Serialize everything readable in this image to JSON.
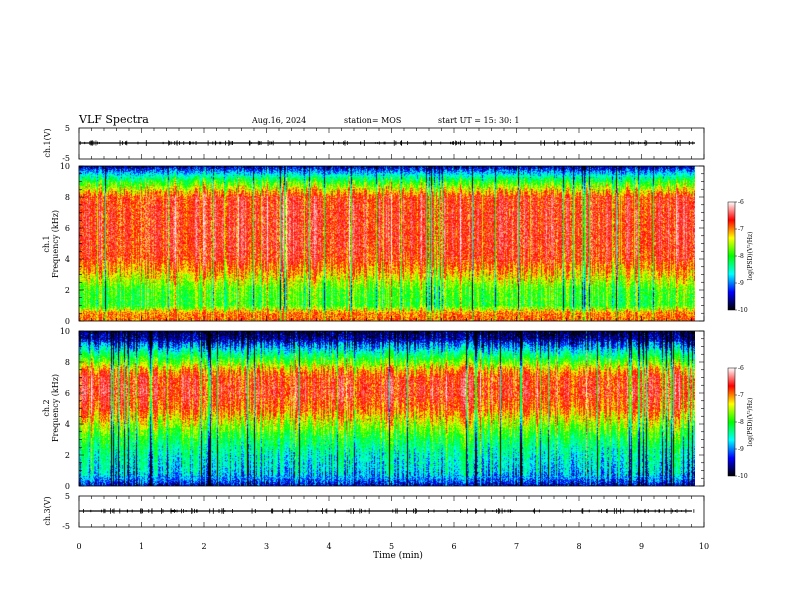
{
  "header": {
    "title": "VLF Spectra",
    "date": "Aug.16, 2024",
    "station": "station= MOS",
    "start": "start  UT  =   15: 30: 1"
  },
  "colorbar": {
    "label": "log(PSD)(V²/Hz)",
    "ticks": [
      "-6",
      "-7",
      "-8",
      "-9",
      "-10"
    ],
    "colors": [
      "#ffffff",
      "#ff0000",
      "#ffff00",
      "#00ff00",
      "#00ffff",
      "#0000ff",
      "#000000"
    ]
  },
  "xaxis": {
    "label": "Time  (min)",
    "ticks": [
      "0",
      "1",
      "2",
      "3",
      "4",
      "5",
      "6",
      "7",
      "8",
      "9",
      "10"
    ]
  },
  "chart_data": [
    {
      "type": "line",
      "panel": "ch.1 waveform",
      "ylabel": "ch.1(V)",
      "yticks": [
        "5",
        "-5"
      ],
      "ylim": [
        -5,
        5
      ],
      "xlim": [
        0,
        10
      ],
      "series": [
        {
          "x": [
            0,
            9.85
          ],
          "values": [
            0,
            0
          ]
        }
      ]
    },
    {
      "type": "heatmap",
      "panel": "ch.1 spectrogram",
      "ylabel": "ch.1\nFrequency (kHz)",
      "yticks": [
        "0",
        "2",
        "4",
        "6",
        "8",
        "10"
      ],
      "ylim": [
        0,
        10
      ],
      "xlim": [
        0,
        10
      ],
      "data_end_min": 9.85,
      "clim": [
        -10,
        -6
      ],
      "profile_khz": [
        0,
        0.5,
        1,
        2,
        3,
        4,
        5,
        6,
        7,
        8,
        8.5,
        9,
        9.5,
        10
      ],
      "profile_logpsd": [
        -7.2,
        -7.3,
        -8.2,
        -8.1,
        -7.5,
        -7.0,
        -6.9,
        -6.9,
        -6.9,
        -7.0,
        -7.6,
        -8.2,
        -9.0,
        -9.7
      ]
    },
    {
      "type": "heatmap",
      "panel": "ch.2 spectrogram",
      "ylabel": "ch.2\nFrequency (kHz)",
      "yticks": [
        "0",
        "2",
        "4",
        "6",
        "8",
        "10"
      ],
      "ylim": [
        0,
        10
      ],
      "xlim": [
        0,
        10
      ],
      "data_end_min": 9.85,
      "clim": [
        -10,
        -6
      ],
      "profile_khz": [
        0,
        0.5,
        1,
        2,
        3,
        4,
        5,
        6,
        7,
        7.5,
        8,
        8.5,
        9,
        9.5,
        10
      ],
      "profile_logpsd": [
        -9.6,
        -9.2,
        -9.0,
        -8.8,
        -8.4,
        -7.8,
        -7.2,
        -6.9,
        -7.0,
        -7.4,
        -8.0,
        -8.6,
        -9.2,
        -9.7,
        -9.9
      ]
    },
    {
      "type": "line",
      "panel": "ch.3 waveform",
      "ylabel": "ch.3(V)",
      "yticks": [
        "5",
        "-5"
      ],
      "ylim": [
        -5,
        5
      ],
      "xlim": [
        0,
        10
      ],
      "series": [
        {
          "x": [
            0,
            9.85
          ],
          "values": [
            0,
            0
          ]
        }
      ]
    }
  ]
}
